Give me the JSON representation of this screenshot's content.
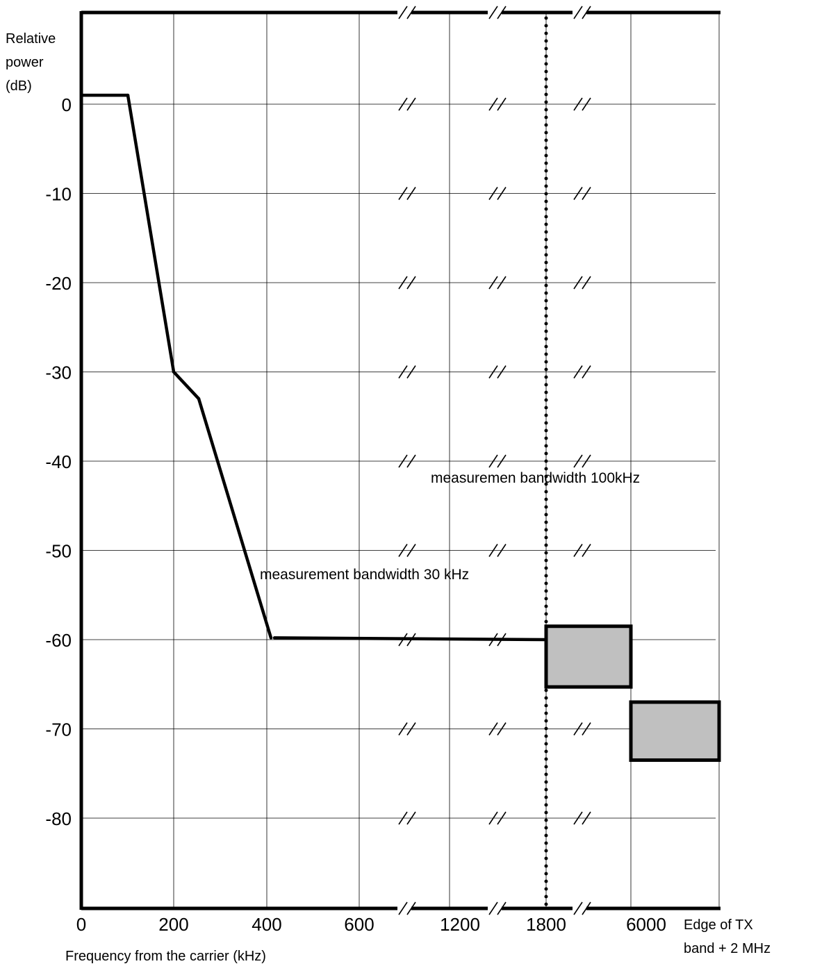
{
  "chart_data": {
    "type": "line",
    "ylabel": [
      "Relative",
      "power",
      "(dB)"
    ],
    "xlabel": "Frequency from the carrier (kHz)",
    "x_tick_labels": [
      "0",
      "200",
      "400",
      "600",
      "1200",
      "1800",
      "6000"
    ],
    "x_end_label": [
      "Edge of TX",
      "band + 2 MHz"
    ],
    "y_ticks": [
      0,
      -10,
      -20,
      -30,
      -40,
      -50,
      -60,
      -70,
      -80
    ],
    "y_tick_labels": [
      "0",
      "-10",
      "-20",
      "-30",
      "-40",
      "-50",
      "-60",
      "-70",
      "-80"
    ],
    "ylim": [
      -90,
      10
    ],
    "axis_breaks": "between 600 and 1200, between 1200 and 1800, between 1800 and 6000",
    "series": [
      {
        "x": [
          "0",
          "100",
          "200",
          "250",
          "400",
          "1800"
        ],
        "y": [
          1,
          1,
          -30,
          -33,
          -59.8,
          -60
        ]
      }
    ],
    "shaded_regions": [
      {
        "x_from": "1800",
        "x_to": "6000",
        "y_top": -58.5,
        "y_bottom": -65.3
      },
      {
        "x_from": "6000",
        "x_to": "Edge of TX band + 2 MHz",
        "y_top": -67,
        "y_bottom": -73.5
      }
    ],
    "divider_at_x": "1800",
    "annotations": [
      "measurement bandwidth 30 kHz",
      "measuremen  bandwidth 100kHz"
    ],
    "grid": true,
    "colors": {
      "line": "#000000",
      "region_fill": "#c0c0c0",
      "grid": "#000000"
    }
  }
}
